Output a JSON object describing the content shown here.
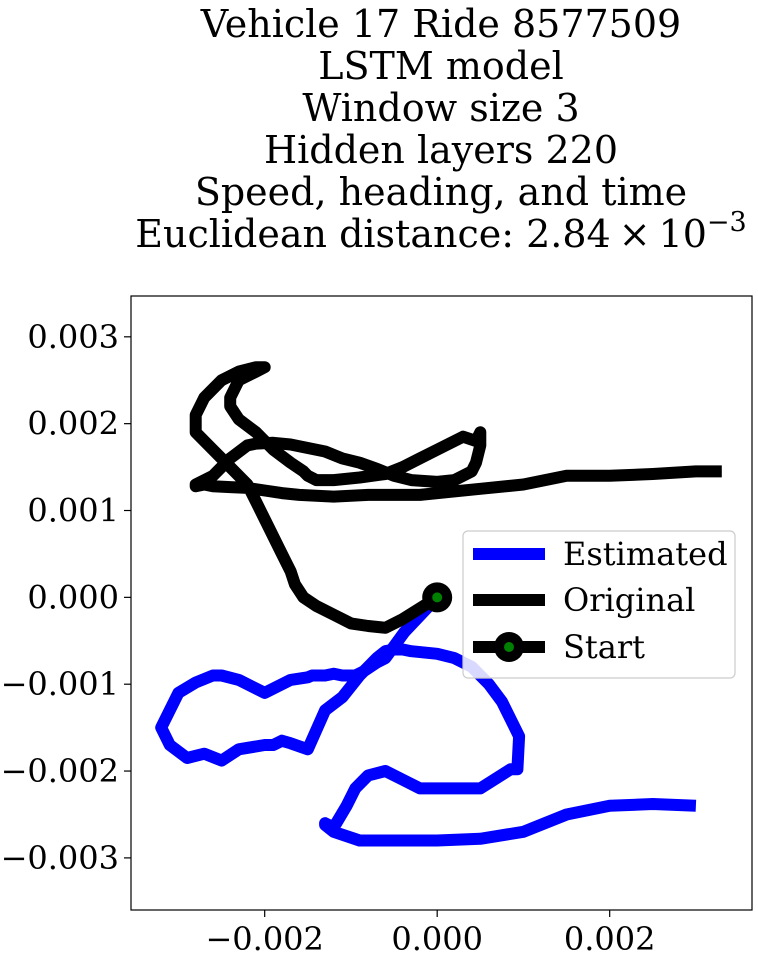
{
  "chart_data": {
    "type": "line",
    "title_lines": [
      "Vehicle 17 Ride 8577509",
      "LSTM model",
      "Window size 3",
      "Hidden layers 220",
      "Speed, heading, and time"
    ],
    "title_distance_prefix": "Euclidean distance: 2.84",
    "title_distance_times": "×",
    "title_distance_base": "10",
    "title_distance_exp": "−3",
    "xlabel": "",
    "ylabel": "",
    "xlim": [
      -0.00355,
      0.00365
    ],
    "ylim": [
      -0.0036,
      0.00347
    ],
    "xticks": [
      {
        "value": -0.002,
        "label": "−0.002"
      },
      {
        "value": 0.0,
        "label": "0.000"
      },
      {
        "value": 0.002,
        "label": "0.002"
      }
    ],
    "yticks": [
      {
        "value": 0.003,
        "label": "0.003"
      },
      {
        "value": 0.002,
        "label": "0.002"
      },
      {
        "value": 0.001,
        "label": "0.001"
      },
      {
        "value": 0.0,
        "label": "0.000"
      },
      {
        "value": -0.001,
        "label": "−0.001"
      },
      {
        "value": -0.002,
        "label": "−0.002"
      },
      {
        "value": -0.003,
        "label": "−0.003"
      }
    ],
    "grid": false,
    "legend_position": "center-right",
    "series": [
      {
        "name": "Estimated",
        "color": "#0000ff",
        "x": [
          0.0,
          -0.00038,
          -0.0006,
          -0.0007,
          -0.00085,
          -0.00095,
          -0.0011,
          -0.0012,
          -0.0013,
          -0.00145,
          -0.0015,
          -0.0017,
          -0.002,
          -0.0023,
          -0.0025,
          -0.0026,
          -0.0028,
          -0.003,
          -0.0032,
          -0.0031,
          -0.0029,
          -0.0027,
          -0.0025,
          -0.0023,
          -0.002,
          -0.0019,
          -0.0018,
          -0.0017,
          -0.0015,
          -0.0013,
          -0.0011,
          -0.0009,
          -0.0008,
          -0.0007,
          -0.0006,
          -0.0005,
          -0.0004,
          -0.0003,
          0.0,
          0.0002,
          0.0004,
          0.0006,
          0.00075,
          0.00095,
          0.00093,
          0.00085,
          0.0005,
          0.0002,
          -0.0002,
          -0.0004,
          -0.0006,
          -0.0008,
          -0.00095,
          -0.00105,
          -0.0012,
          -0.0013,
          -0.0013,
          -0.0012,
          -0.0009,
          -0.0005,
          0.0,
          0.0005,
          0.001,
          0.0015,
          0.002,
          0.0025,
          0.003
        ],
        "y": [
          0.0,
          -0.0004,
          -0.0007,
          -0.00075,
          -0.00085,
          -0.0009,
          -0.0009,
          -0.00088,
          -0.0009,
          -0.0009,
          -0.00092,
          -0.00095,
          -0.0011,
          -0.00095,
          -0.0009,
          -0.0009,
          -0.00098,
          -0.0011,
          -0.0015,
          -0.0017,
          -0.00185,
          -0.0018,
          -0.00188,
          -0.00175,
          -0.0017,
          -0.0017,
          -0.00165,
          -0.00168,
          -0.00175,
          -0.0013,
          -0.00115,
          -0.0009,
          -0.0008,
          -0.0007,
          -0.00062,
          -0.0006,
          -0.0006,
          -0.00062,
          -0.00065,
          -0.0007,
          -0.0008,
          -0.001,
          -0.0012,
          -0.0016,
          -0.00198,
          -0.00198,
          -0.0022,
          -0.0022,
          -0.0022,
          -0.0021,
          -0.002,
          -0.00205,
          -0.0022,
          -0.0024,
          -0.00265,
          -0.0026,
          -0.00262,
          -0.0027,
          -0.0028,
          -0.0028,
          -0.0028,
          -0.00278,
          -0.0027,
          -0.0025,
          -0.0024,
          -0.00238,
          -0.0024
        ],
        "line_width": 12
      },
      {
        "name": "Original",
        "color": "#000000",
        "x": [
          0.0,
          -0.0004,
          -0.0006,
          -0.0008,
          -0.001,
          -0.0012,
          -0.0014,
          -0.00155,
          -0.00165,
          -0.0017,
          -0.0018,
          -0.0019,
          -0.002,
          -0.0021,
          -0.0022,
          -0.0024,
          -0.0026,
          -0.0028,
          -0.0028,
          -0.0027,
          -0.0025,
          -0.0023,
          -0.0021,
          -0.002,
          -0.002,
          -0.0021,
          -0.0023,
          -0.0024,
          -0.0024,
          -0.0023,
          -0.0021,
          -0.0019,
          -0.0017,
          -0.00155,
          -0.0015,
          -0.0014,
          -0.0012,
          -0.0009,
          -0.0006,
          -0.0004,
          -0.0002,
          0.0,
          0.0003,
          0.00045,
          0.0005,
          0.0005,
          0.00045,
          0.0004,
          0.0002,
          0.0,
          -0.0003,
          -0.0005,
          -0.0007,
          -0.0009,
          -0.0011,
          -0.0013,
          -0.0015,
          -0.0017,
          -0.0019,
          -0.0021,
          -0.0022,
          -0.0024,
          -0.0026,
          -0.0028,
          -0.0028,
          -0.0027,
          -0.0026,
          -0.0024,
          -0.0022,
          -0.002,
          -0.0018,
          -0.0016,
          -0.0014,
          -0.0012,
          -0.001,
          -0.0008,
          -0.0006,
          -0.0004,
          -0.0002,
          0.0,
          0.0005,
          0.001,
          0.0015,
          0.002,
          0.0025,
          0.003,
          0.0033
        ],
        "y": [
          0.0,
          -0.00025,
          -0.00035,
          -0.00033,
          -0.0003,
          -0.0002,
          -0.0001,
          0.0,
          0.00015,
          0.0003,
          0.0005,
          0.0007,
          0.0009,
          0.0011,
          0.0013,
          0.0015,
          0.0017,
          0.0019,
          0.0021,
          0.0023,
          0.0025,
          0.0026,
          0.00265,
          0.00265,
          0.00265,
          0.0026,
          0.0025,
          0.0023,
          0.0022,
          0.00205,
          0.0019,
          0.0017,
          0.00155,
          0.00145,
          0.0014,
          0.00135,
          0.00135,
          0.00138,
          0.00142,
          0.0015,
          0.0016,
          0.0017,
          0.00185,
          0.0018,
          0.0019,
          0.00175,
          0.00155,
          0.00145,
          0.00135,
          0.00133,
          0.00135,
          0.0014,
          0.00148,
          0.00155,
          0.0016,
          0.00168,
          0.00172,
          0.00176,
          0.00178,
          0.00177,
          0.00175,
          0.0016,
          0.0014,
          0.0013,
          0.00128,
          0.0013,
          0.00128,
          0.00127,
          0.00126,
          0.00123,
          0.0012,
          0.00118,
          0.00117,
          0.00116,
          0.00117,
          0.00118,
          0.00118,
          0.00118,
          0.00118,
          0.0012,
          0.00125,
          0.0013,
          0.0014,
          0.0014,
          0.00142,
          0.00145,
          0.00145
        ],
        "line_width": 12
      }
    ],
    "start_point": {
      "name": "Start",
      "x": 0.0,
      "y": 0.0,
      "outer_color": "#000000",
      "inner_color": "#008000"
    },
    "legend_entries": [
      "Estimated",
      "Original",
      "Start"
    ]
  }
}
